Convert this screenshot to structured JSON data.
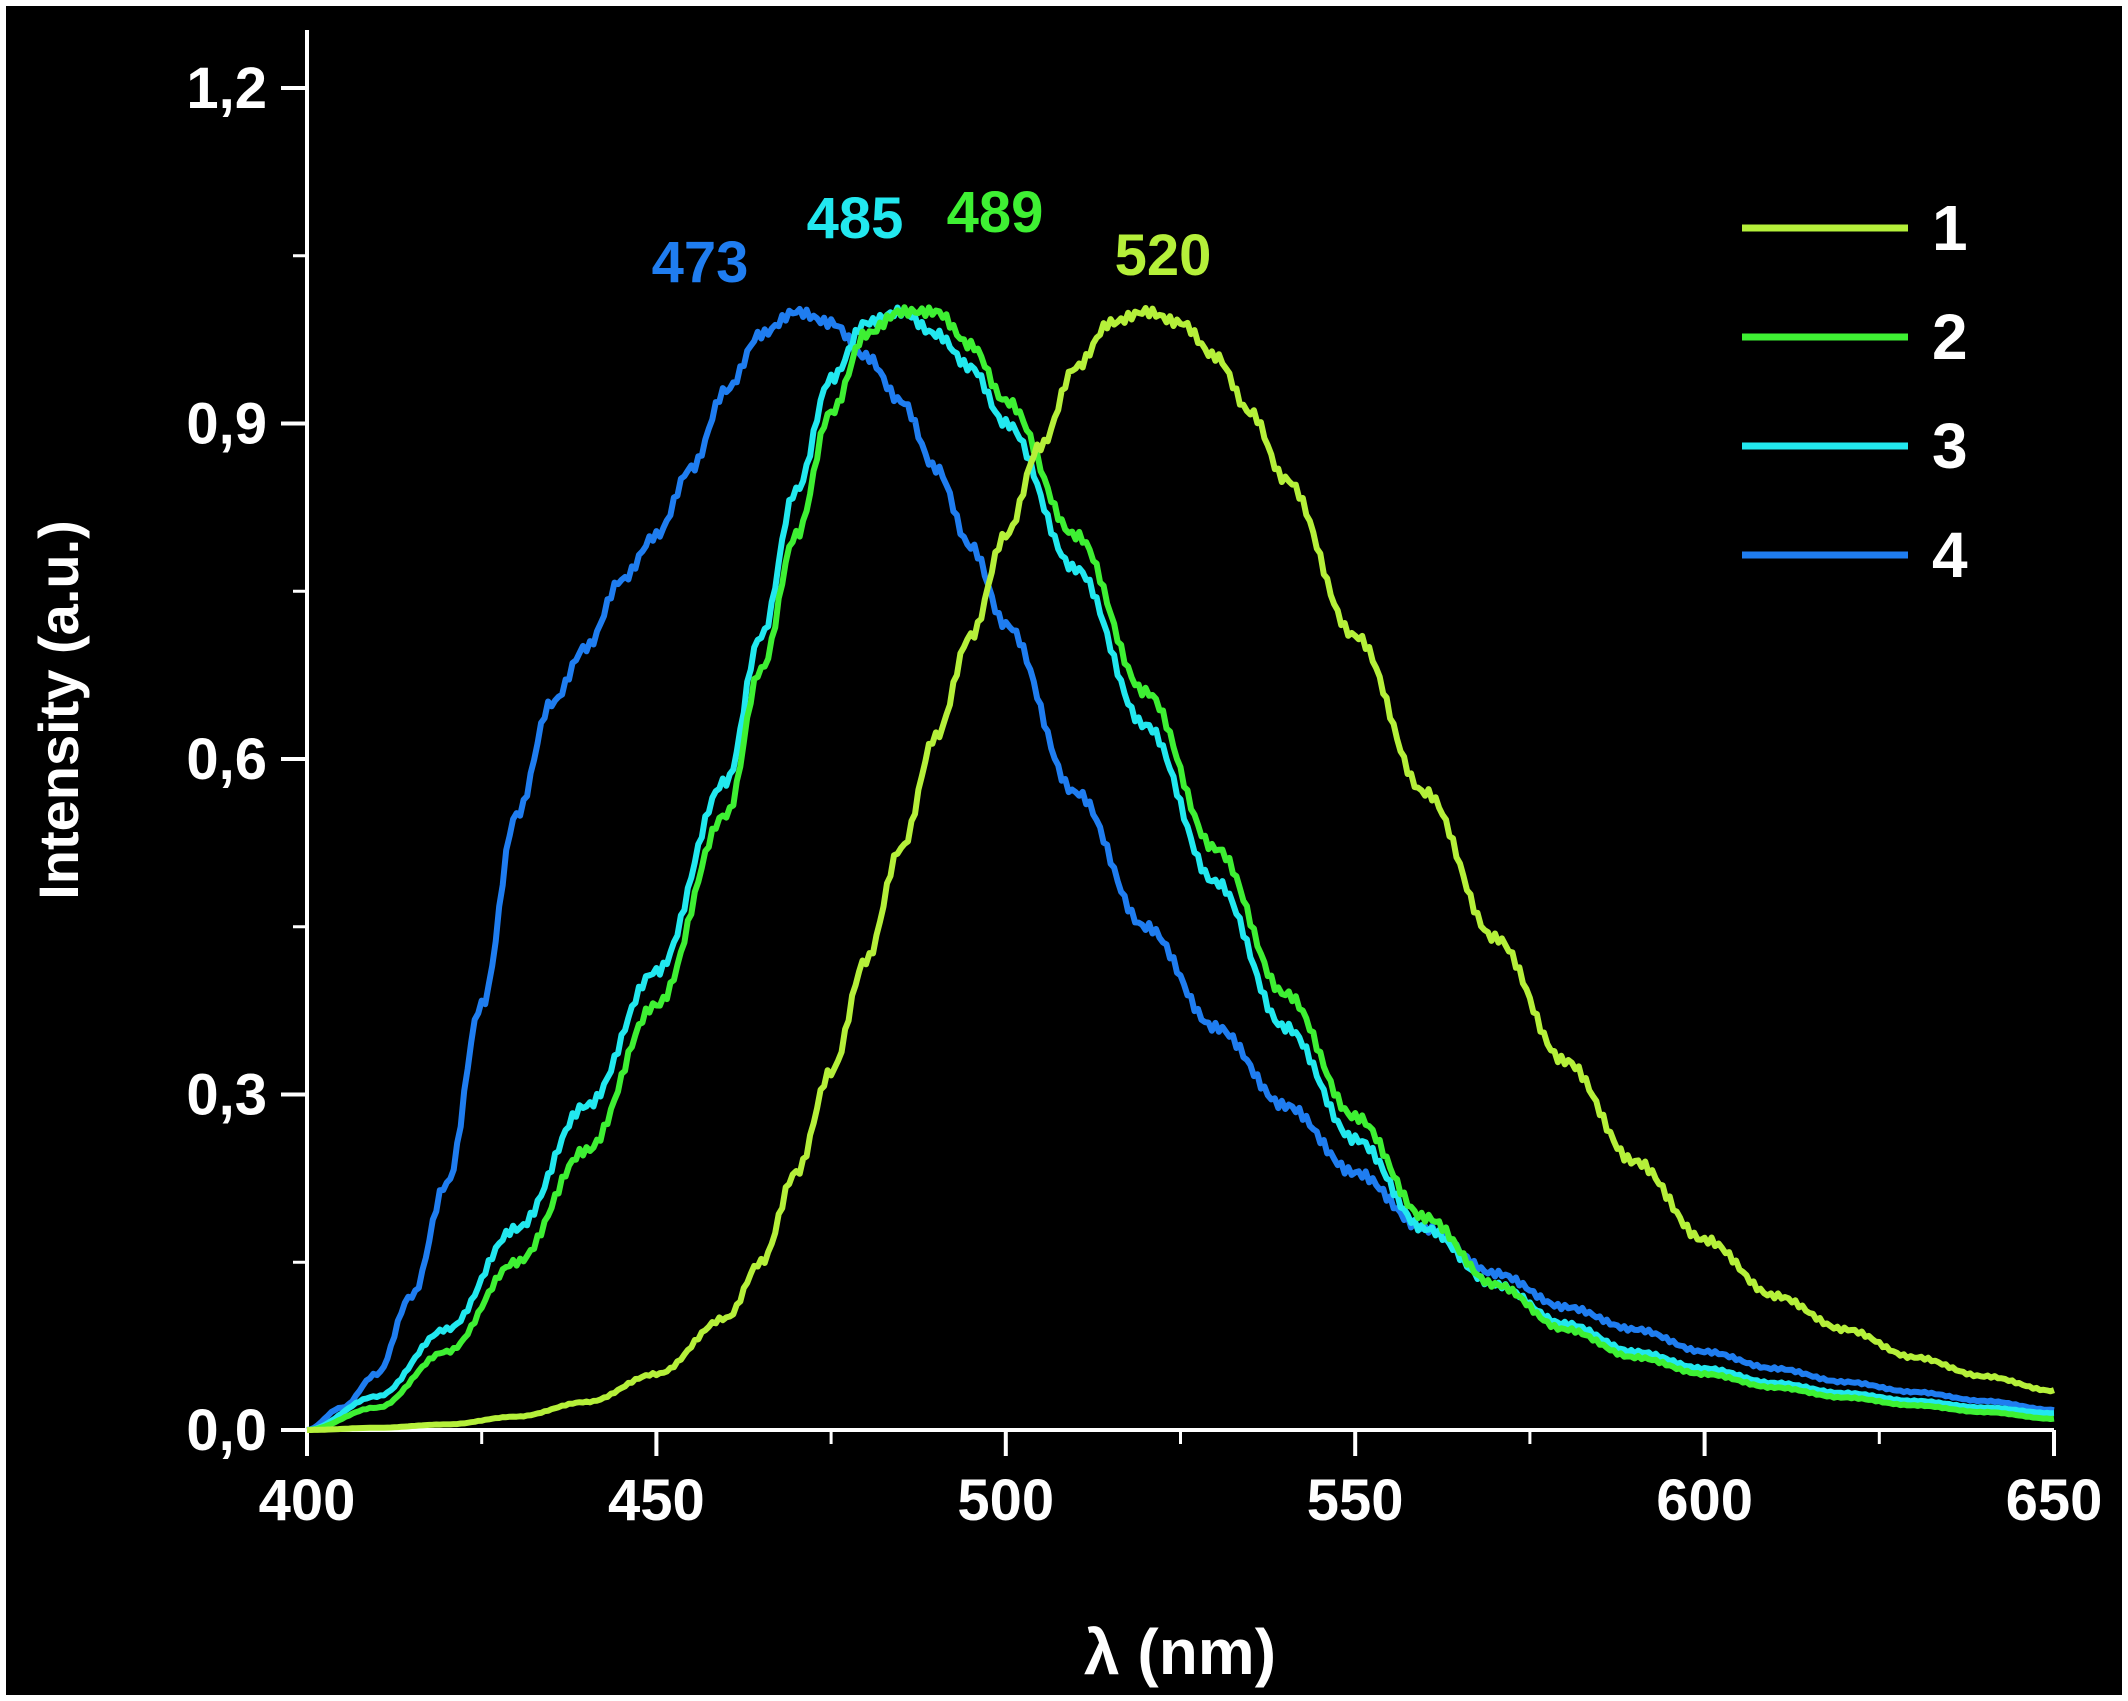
{
  "chart_data": {
    "type": "line",
    "title": "",
    "xlabel": "λ (nm)",
    "ylabel": "Intensity (a.u.)",
    "xlim": [
      400,
      650
    ],
    "ylim": [
      0,
      1.25
    ],
    "x_ticks": [
      "400",
      "450",
      "500",
      "550",
      "600",
      "650"
    ],
    "y_ticks": [
      "0,0",
      "0,3",
      "0,6",
      "0,9",
      "1,2"
    ],
    "x_tick_values": [
      400,
      450,
      500,
      550,
      600,
      650
    ],
    "y_tick_values": [
      0,
      0.3,
      0.6,
      0.9,
      1.2
    ],
    "grid": false,
    "legend_position": "top-right",
    "background_color": "#000000",
    "axis_color": "#ffffff",
    "series": [
      {
        "name": "1",
        "color": "#b5f03a",
        "peak_label": "520",
        "peak_x": 520,
        "x": [
          400,
          410,
          420,
          430,
          440,
          450,
          460,
          465,
          470,
          475,
          480,
          485,
          490,
          495,
          500,
          505,
          510,
          515,
          520,
          525,
          530,
          535,
          540,
          550,
          560,
          570,
          580,
          590,
          600,
          610,
          620,
          630,
          640,
          650
        ],
        "y": [
          0.0,
          0.002,
          0.005,
          0.012,
          0.025,
          0.05,
          0.1,
          0.15,
          0.23,
          0.32,
          0.42,
          0.52,
          0.62,
          0.71,
          0.8,
          0.88,
          0.95,
          0.99,
          1.0,
          0.99,
          0.96,
          0.91,
          0.85,
          0.71,
          0.57,
          0.44,
          0.33,
          0.24,
          0.17,
          0.12,
          0.09,
          0.065,
          0.048,
          0.035
        ]
      },
      {
        "name": "2",
        "color": "#3ef033",
        "peak_label": "489",
        "peak_x": 489,
        "x": [
          400,
          410,
          420,
          430,
          440,
          450,
          460,
          465,
          470,
          475,
          480,
          485,
          490,
          495,
          500,
          510,
          520,
          530,
          540,
          550,
          560,
          570,
          580,
          590,
          600,
          610,
          620,
          630,
          640,
          650
        ],
        "y": [
          0.0,
          0.02,
          0.07,
          0.15,
          0.25,
          0.38,
          0.55,
          0.68,
          0.8,
          0.91,
          0.98,
          1.0,
          1.0,
          0.97,
          0.92,
          0.8,
          0.66,
          0.52,
          0.39,
          0.28,
          0.19,
          0.13,
          0.09,
          0.065,
          0.05,
          0.038,
          0.029,
          0.022,
          0.016,
          0.01
        ]
      },
      {
        "name": "3",
        "color": "#22e8ef",
        "peak_label": "485",
        "peak_x": 485,
        "x": [
          400,
          410,
          420,
          430,
          440,
          450,
          460,
          465,
          470,
          475,
          480,
          485,
          490,
          495,
          500,
          510,
          520,
          530,
          540,
          550,
          560,
          570,
          580,
          590,
          600,
          610,
          620,
          630,
          640,
          650
        ],
        "y": [
          0.0,
          0.03,
          0.09,
          0.18,
          0.29,
          0.41,
          0.58,
          0.71,
          0.84,
          0.94,
          0.99,
          1.0,
          0.98,
          0.95,
          0.9,
          0.77,
          0.63,
          0.49,
          0.36,
          0.26,
          0.18,
          0.13,
          0.095,
          0.07,
          0.055,
          0.042,
          0.033,
          0.026,
          0.02,
          0.015
        ]
      },
      {
        "name": "4",
        "color": "#1f7df0",
        "peak_label": "473",
        "peak_x": 473,
        "x": [
          400,
          405,
          410,
          415,
          420,
          425,
          430,
          435,
          440,
          445,
          450,
          455,
          460,
          465,
          470,
          475,
          480,
          485,
          490,
          495,
          500,
          510,
          520,
          530,
          540,
          550,
          560,
          570,
          580,
          590,
          600,
          610,
          620,
          630,
          640,
          650
        ],
        "y": [
          0.0,
          0.02,
          0.05,
          0.12,
          0.22,
          0.38,
          0.55,
          0.65,
          0.7,
          0.76,
          0.8,
          0.86,
          0.93,
          0.98,
          1.0,
          0.99,
          0.96,
          0.92,
          0.86,
          0.79,
          0.72,
          0.57,
          0.45,
          0.36,
          0.29,
          0.23,
          0.18,
          0.14,
          0.11,
          0.09,
          0.07,
          0.055,
          0.043,
          0.034,
          0.026,
          0.018
        ]
      }
    ]
  }
}
